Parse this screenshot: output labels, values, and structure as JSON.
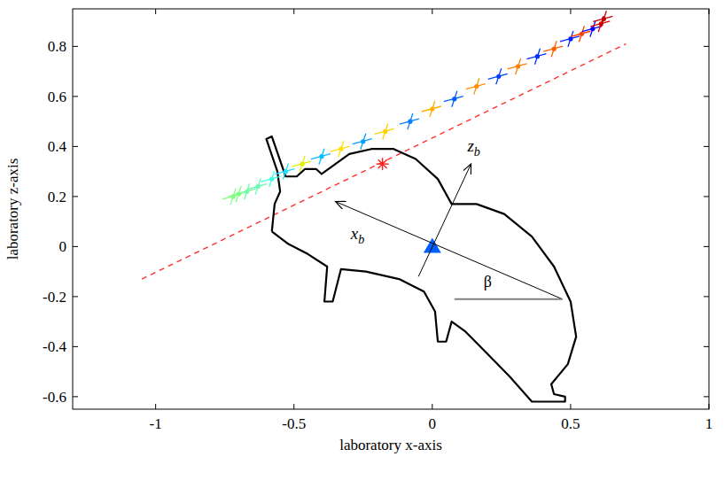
{
  "chart_data": {
    "type": "scatter",
    "x_label": "laboratory x-axis",
    "y_label": "laboratory z-axis",
    "xlim": [
      -1.3,
      1.0
    ],
    "ylim": [
      -0.65,
      0.95
    ],
    "xticks": [
      -1,
      -0.5,
      0,
      0.5,
      1
    ],
    "yticks": [
      -0.6,
      -0.4,
      -0.2,
      0,
      0.2,
      0.4,
      0.6,
      0.8
    ],
    "series": [
      {
        "type": "line",
        "color": "#ff3030",
        "line_style": "dashed",
        "x": [
          -1.05,
          0.7
        ],
        "values": [
          -0.13,
          0.81
        ]
      },
      {
        "type": "line",
        "color": "#000000",
        "line_style": "solid",
        "x": [
          -0.58,
          -0.57,
          -0.55,
          -0.56,
          -0.6,
          -0.58,
          -0.53,
          -0.49,
          -0.46,
          -0.42,
          -0.4,
          -0.35,
          -0.3,
          -0.22,
          -0.14,
          -0.06,
          0.02,
          0.07,
          0.16,
          0.26,
          0.36,
          0.44,
          0.5,
          0.52,
          0.49,
          0.43,
          0.44,
          0.48,
          0.48,
          0.36,
          0.28,
          0.2,
          0.12,
          0.07,
          0.05,
          0.02,
          0.01,
          -0.03,
          -0.12,
          -0.24,
          -0.33,
          -0.36,
          -0.39,
          -0.38,
          -0.45,
          -0.52,
          -0.58
        ],
        "values": [
          0.06,
          0.17,
          0.22,
          0.3,
          0.43,
          0.44,
          0.28,
          0.28,
          0.31,
          0.31,
          0.29,
          0.33,
          0.37,
          0.39,
          0.39,
          0.35,
          0.27,
          0.17,
          0.17,
          0.13,
          0.04,
          -0.08,
          -0.22,
          -0.36,
          -0.47,
          -0.55,
          -0.59,
          -0.6,
          -0.62,
          -0.62,
          -0.52,
          -0.43,
          -0.34,
          -0.3,
          -0.38,
          -0.38,
          -0.26,
          -0.18,
          -0.13,
          -0.1,
          -0.09,
          -0.22,
          -0.22,
          -0.08,
          -0.03,
          0.01,
          0.06
        ]
      },
      {
        "type": "scatter",
        "marker": "tick",
        "x": [
          -0.72,
          -0.7,
          -0.67,
          -0.63,
          -0.58,
          -0.53,
          -0.47,
          -0.4,
          -0.33,
          -0.25,
          -0.17,
          -0.08,
          0.0,
          0.08,
          0.16,
          0.24,
          0.31,
          0.38,
          0.44,
          0.5,
          0.54,
          0.58,
          0.61,
          0.62
        ],
        "values": [
          0.2,
          0.21,
          0.22,
          0.24,
          0.27,
          0.3,
          0.33,
          0.36,
          0.39,
          0.42,
          0.46,
          0.5,
          0.55,
          0.59,
          0.64,
          0.68,
          0.72,
          0.76,
          0.79,
          0.83,
          0.85,
          0.87,
          0.89,
          0.91
        ],
        "colors": [
          "#80ff80",
          "#80ff80",
          "#70ffa0",
          "#60ffb0",
          "#40ffe0",
          "#20e0ff",
          "#e0f000",
          "#00c0ff",
          "#ffe000",
          "#00a0ff",
          "#ffd000",
          "#0080ff",
          "#ffb000",
          "#0060ff",
          "#ff9000",
          "#0040ff",
          "#ff8000",
          "#0030ff",
          "#ff6000",
          "#0020ff",
          "#ff4000",
          "#0000ff",
          "#e00000",
          "#c00000"
        ]
      },
      {
        "type": "scatter",
        "marker": "triangle",
        "color": "#0060ff",
        "x": [
          0
        ],
        "values": [
          0
        ]
      },
      {
        "type": "scatter",
        "marker": "star",
        "color": "#ff2020",
        "x": [
          -0.18
        ],
        "values": [
          0.33
        ]
      }
    ],
    "arrows": [
      {
        "label": "x",
        "subscript": "b",
        "from": [
          0.47,
          -0.21
        ],
        "to": [
          -0.35,
          0.18
        ],
        "label_at": [
          -0.27,
          0.03
        ]
      },
      {
        "label": "z",
        "subscript": "b",
        "from": [
          -0.05,
          -0.12
        ],
        "to": [
          0.14,
          0.33
        ],
        "label_at": [
          0.15,
          0.38
        ]
      }
    ],
    "angle": {
      "label": "β",
      "vertex": [
        0.47,
        -0.21
      ],
      "ref_to": [
        0.08,
        -0.21
      ],
      "label_at": [
        0.2,
        -0.16
      ]
    }
  }
}
